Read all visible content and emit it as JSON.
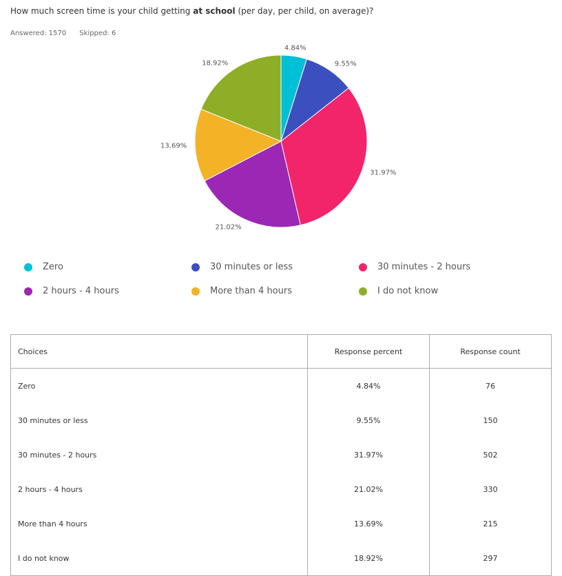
{
  "question": {
    "prefix": "How much screen time is your child getting ",
    "bold": "at school",
    "suffix": " (per day, per child, on average)?"
  },
  "stats": {
    "answered": "Answered: 1570",
    "skipped": "Skipped: 6"
  },
  "chart_data": {
    "type": "pie",
    "categories": [
      "Zero",
      "30 minutes or less",
      "30 minutes - 2 hours",
      "2 hours - 4 hours",
      "More than 4 hours",
      "I do not know"
    ],
    "values": [
      4.84,
      9.55,
      31.97,
      21.02,
      13.69,
      18.92
    ],
    "labels": [
      "4.84%",
      "9.55%",
      "31.97%",
      "21.02%",
      "13.69%",
      "18.92%"
    ],
    "colors": [
      "#00c0d8",
      "#3c4fbf",
      "#f2256a",
      "#9c27b4",
      "#f4b227",
      "#8dae26"
    ],
    "legend_position": "bottom"
  },
  "table": {
    "headers": [
      "Choices",
      "Response percent",
      "Response count"
    ],
    "rows": [
      [
        "Zero",
        "4.84%",
        "76"
      ],
      [
        "30 minutes or less",
        "9.55%",
        "150"
      ],
      [
        "30 minutes - 2 hours",
        "31.97%",
        "502"
      ],
      [
        "2 hours - 4 hours",
        "21.02%",
        "330"
      ],
      [
        "More than 4 hours",
        "13.69%",
        "215"
      ],
      [
        "I do not know",
        "18.92%",
        "297"
      ]
    ]
  }
}
